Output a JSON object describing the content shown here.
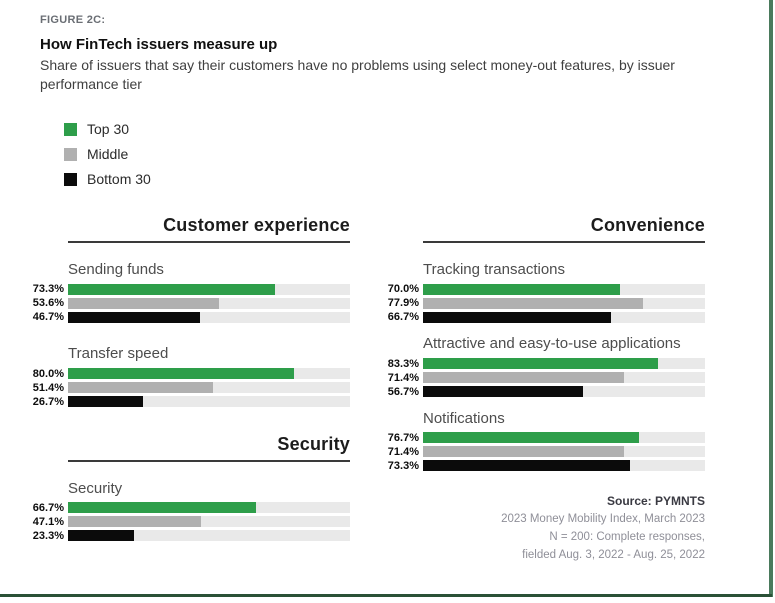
{
  "figure_label": "FIGURE 2C:",
  "title": "How FinTech issuers measure up",
  "subtitle": "Share of issuers that say their customers have no problems using select money-out features, by issuer performance tier",
  "legend": [
    {
      "label": "Top 30",
      "color": "#2e9e4a"
    },
    {
      "label": "Middle",
      "color": "#b0b0b0"
    },
    {
      "label": "Bottom 30",
      "color": "#0b0b0b"
    }
  ],
  "colors": {
    "top30": "#2e9e4a",
    "middle": "#b0b0b0",
    "bottom30": "#0b0b0b",
    "bar_track": "#e9e9e9",
    "page_edge_right": "#4a7a5c",
    "page_edge_bottom": "#2a5136"
  },
  "chart_data": {
    "type": "bar",
    "orientation": "horizontal",
    "unit": "%",
    "xlim": [
      0,
      100
    ],
    "series_names": [
      "Top 30",
      "Middle",
      "Bottom 30"
    ],
    "columns": [
      {
        "sections": [
          {
            "header": "Customer experience",
            "groups": [
              {
                "label": "Sending funds",
                "values": [
                  73.3,
                  53.6,
                  46.7
                ]
              },
              {
                "label": "Transfer speed",
                "values": [
                  80.0,
                  51.4,
                  26.7
                ]
              }
            ]
          },
          {
            "header": "Security",
            "groups": [
              {
                "label": "Security",
                "values": [
                  66.7,
                  47.1,
                  23.3
                ]
              }
            ]
          }
        ]
      },
      {
        "sections": [
          {
            "header": "Convenience",
            "groups": [
              {
                "label": "Tracking transactions",
                "values": [
                  70.0,
                  77.9,
                  66.7
                ]
              },
              {
                "label": "Attractive and easy-to-use applications",
                "values": [
                  83.3,
                  71.4,
                  56.7
                ]
              },
              {
                "label": "Notifications",
                "values": [
                  76.7,
                  71.4,
                  73.3
                ]
              }
            ]
          }
        ]
      }
    ]
  },
  "source": {
    "bold": "Source: PYMNTS",
    "lines": [
      "2023 Money Mobility Index, March 2023",
      "N = 200: Complete responses,",
      "fielded Aug. 3, 2022 - Aug. 25, 2022"
    ]
  }
}
